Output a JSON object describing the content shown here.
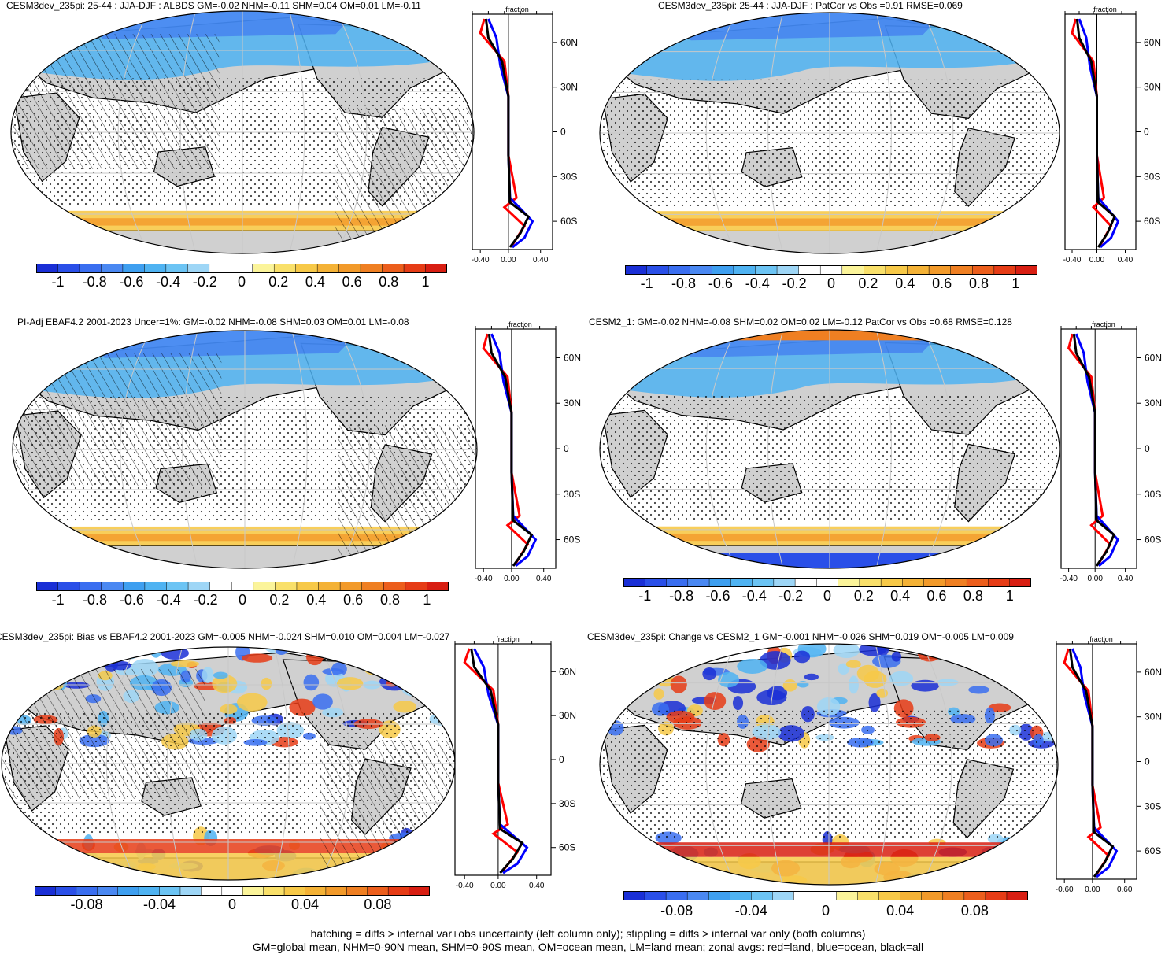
{
  "panels": [
    {
      "title": "CESM3dev_235pi: 25-44 : JJA-DJF : ALBDS GM=-0.02 NHM=-0.11 SHM=0.04 OM=0.01 LM=-0.11",
      "zonal_xlabel": "fraction",
      "zonal_xticks": [
        "-0.40",
        "0.00",
        "0.40"
      ],
      "hatch": true,
      "variant": "a"
    },
    {
      "title": "CESM3dev_235pi: 25-44 : JJA-DJF : PatCor vs Obs =0.91 RMSE=0.069",
      "zonal_xlabel": "fraction",
      "zonal_xticks": [
        "-0.40",
        "0.00",
        "0.40"
      ],
      "hatch": false,
      "variant": "a"
    },
    {
      "title": "PI-Adj EBAF4.2 2001-2023 Uncer=1%: GM=-0.02 NHM=-0.08 SHM=0.03 OM=0.01 LM=-0.08",
      "zonal_xlabel": "fraction",
      "zonal_xticks": [
        "-0.40",
        "0.00",
        "0.40"
      ],
      "hatch": true,
      "variant": "a"
    },
    {
      "title": "CESM2_1: GM=-0.02 NHM=-0.08 SHM=0.02 OM=0.02 LM=-0.12 PatCor vs Obs =0.68 RMSE=0.128",
      "zonal_xlabel": "fraction",
      "zonal_xticks": [
        "-0.40",
        "0.00",
        "0.40"
      ],
      "hatch": false,
      "variant": "b"
    },
    {
      "title": "CESM3dev_235pi: Bias vs EBAF4.2 2001-2023 GM=-0.005 NHM=-0.024 SHM=0.010 OM=0.004 LM=-0.027",
      "zonal_xlabel": "fraction",
      "zonal_xticks": [
        "-0.40",
        "0.00",
        "0.40"
      ],
      "hatch": true,
      "variant": "c"
    },
    {
      "title": "CESM3dev_235pi: Change vs CESM2_1 GM=-0.001 NHM=-0.026 SHM=0.019 OM=-0.005 LM=0.009",
      "zonal_xlabel": "fraction",
      "zonal_xticks": [
        "-0.60",
        "0.00",
        "0.60"
      ],
      "hatch": false,
      "variant": "d"
    }
  ],
  "lat_labels": [
    "60N",
    "30N",
    "0",
    "30S",
    "60S"
  ],
  "colorbar_full": [
    "-1",
    "-0.8",
    "-0.6",
    "-0.4",
    "-0.2",
    "0",
    "0.2",
    "0.4",
    "0.6",
    "0.8",
    "1"
  ],
  "colorbar_diff": [
    "-0.08",
    "-0.04",
    "0",
    "0.04",
    "0.08"
  ],
  "colors": {
    "palette": [
      "#1a2fd6",
      "#2a4fe8",
      "#3a6ef0",
      "#4a88f2",
      "#3e9ff0",
      "#4fb3f2",
      "#6cc4f4",
      "#9ed6f6",
      "#ffffff",
      "#ffffff",
      "#fbf49a",
      "#f9e06a",
      "#f7c948",
      "#f4b236",
      "#f29a2a",
      "#ef7f22",
      "#ec5e1c",
      "#e63c16",
      "#d81e12"
    ],
    "land": "#d0d0d0",
    "ocean": "#ffffff",
    "zonal_land": "#ff0000",
    "zonal_ocean": "#0000ff",
    "zonal_all": "#000000"
  },
  "footer": {
    "line1": "hatching = diffs > internal var+obs uncertainty (left column only); stippling = diffs > internal var only (both columns)",
    "line2": "GM=global mean, NHM=0-90N mean, SHM=0-90S mean, OM=ocean mean, LM=land mean; zonal avgs: red=land, blue=ocean, black=all"
  }
}
